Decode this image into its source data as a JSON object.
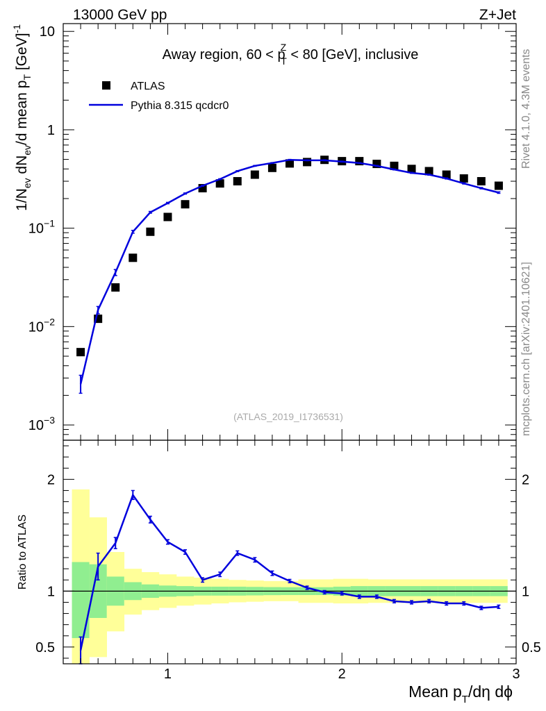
{
  "header": {
    "left": "13000 GeV pp",
    "right": "Z+Jet"
  },
  "side_labels": {
    "rivet": "Rivet 4.1.0,  4.3M events",
    "source": "mcplots.cern.ch [arXiv:2401.10621]"
  },
  "chart_data": [
    {
      "type": "scatter",
      "title_parts": {
        "prefix": "Away region, 60 < p",
        "sub": "T",
        "sup": "Z",
        "suffix": " < 80 [GeV], inclusive"
      },
      "ylabel_parts": [
        "1/N",
        "ev",
        " dN",
        "ev",
        "/d mean p",
        "T",
        " [GeV]",
        "-1"
      ],
      "xlabel_parts": [
        "Mean p",
        "T",
        "/dη dϕ"
      ],
      "yscale": "log",
      "ylim": [
        0.0007,
        12
      ],
      "xlim": [
        0.4,
        3.0
      ],
      "y_ticks": [
        {
          "value": 10,
          "mantissa": "10",
          "exp": ""
        },
        {
          "value": 1,
          "mantissa": "1",
          "exp": ""
        },
        {
          "value": 0.1,
          "mantissa": "10",
          "exp": "−1"
        },
        {
          "value": 0.01,
          "mantissa": "10",
          "exp": "−2"
        },
        {
          "value": 0.001,
          "mantissa": "10",
          "exp": "−3"
        }
      ],
      "watermark": "(ATLAS_2019_I1736531)",
      "legend": {
        "position": "top-left",
        "entries": [
          "ATLAS",
          "Pythia 8.315 qcdcr0"
        ]
      },
      "series": [
        {
          "name": "ATLAS",
          "style": "markers",
          "color": "#000000",
          "x": [
            0.5,
            0.6,
            0.7,
            0.8,
            0.9,
            1.0,
            1.1,
            1.2,
            1.3,
            1.4,
            1.5,
            1.6,
            1.7,
            1.8,
            1.9,
            2.0,
            2.1,
            2.2,
            2.3,
            2.4,
            2.5,
            2.6,
            2.7,
            2.8,
            2.9
          ],
          "values": [
            0.0055,
            0.012,
            0.025,
            0.05,
            0.092,
            0.13,
            0.175,
            0.255,
            0.285,
            0.3,
            0.35,
            0.41,
            0.455,
            0.47,
            0.495,
            0.48,
            0.48,
            0.45,
            0.43,
            0.4,
            0.38,
            0.35,
            0.32,
            0.3,
            0.27
          ]
        },
        {
          "name": "Pythia 8.315 qcdcr0",
          "style": "line",
          "color": "#0000dd",
          "x": [
            0.5,
            0.6,
            0.7,
            0.8,
            0.9,
            1.0,
            1.1,
            1.2,
            1.3,
            1.4,
            1.5,
            1.6,
            1.7,
            1.8,
            1.9,
            2.0,
            2.1,
            2.2,
            2.3,
            2.4,
            2.5,
            2.6,
            2.7,
            2.8,
            2.9
          ],
          "values": [
            0.0026,
            0.0148,
            0.0355,
            0.092,
            0.145,
            0.18,
            0.225,
            0.27,
            0.315,
            0.38,
            0.43,
            0.46,
            0.495,
            0.49,
            0.49,
            0.475,
            0.46,
            0.43,
            0.395,
            0.365,
            0.35,
            0.32,
            0.285,
            0.255,
            0.23
          ],
          "err_low": [
            0.0021,
            0.0135,
            0.033,
            0.089,
            0.142,
            0.177,
            0.222,
            0.267,
            0.312,
            0.376,
            0.426,
            0.456,
            0.49,
            0.485,
            0.485,
            0.47,
            0.456,
            0.426,
            0.391,
            0.361,
            0.346,
            0.316,
            0.281,
            0.251,
            0.226
          ],
          "err_high": [
            0.0032,
            0.016,
            0.038,
            0.095,
            0.148,
            0.183,
            0.228,
            0.273,
            0.318,
            0.384,
            0.434,
            0.464,
            0.5,
            0.495,
            0.495,
            0.48,
            0.464,
            0.434,
            0.399,
            0.369,
            0.354,
            0.324,
            0.289,
            0.259,
            0.234
          ]
        }
      ]
    },
    {
      "type": "line",
      "ylabel": "Ratio to ATLAS",
      "xlabel": "Mean pT/dη dϕ",
      "ylim": [
        0.35,
        2.35
      ],
      "xlim": [
        0.4,
        3.0
      ],
      "y_ticks": [
        0.5,
        1,
        2
      ],
      "y_tick_labels": [
        "0.5",
        "1",
        "2"
      ],
      "x_ticks": [
        1,
        2,
        3
      ],
      "x_tick_labels": [
        "1",
        "2",
        "3"
      ],
      "reference_line": 1,
      "bands": {
        "bin_edges": [
          0.45,
          0.55,
          0.65,
          0.75,
          0.85,
          0.95,
          1.05,
          1.15,
          1.25,
          1.35,
          1.45,
          1.55,
          1.65,
          1.75,
          1.85,
          1.95,
          2.05,
          2.15,
          2.25,
          2.35,
          2.45,
          2.55,
          2.65,
          2.75,
          2.85,
          2.95
        ],
        "green_color": "#90ee90",
        "yellow_color": "#ffff99",
        "green_low": [
          0.58,
          0.76,
          0.87,
          0.92,
          0.94,
          0.95,
          0.955,
          0.96,
          0.96,
          0.96,
          0.962,
          0.964,
          0.965,
          0.965,
          0.965,
          0.96,
          0.955,
          0.955,
          0.955,
          0.955,
          0.955,
          0.955,
          0.955,
          0.955,
          0.955
        ],
        "green_high": [
          1.26,
          1.24,
          1.13,
          1.08,
          1.06,
          1.05,
          1.045,
          1.04,
          1.04,
          1.04,
          1.038,
          1.036,
          1.035,
          1.035,
          1.035,
          1.04,
          1.045,
          1.045,
          1.045,
          1.045,
          1.045,
          1.045,
          1.045,
          1.045,
          1.045
        ],
        "yellow_low": [
          0.35,
          0.41,
          0.64,
          0.79,
          0.83,
          0.85,
          0.87,
          0.88,
          0.89,
          0.9,
          0.905,
          0.91,
          0.91,
          0.895,
          0.895,
          0.89,
          0.89,
          0.895,
          0.895,
          0.895,
          0.895,
          0.895,
          0.895,
          0.895,
          0.895
        ],
        "yellow_high": [
          1.91,
          1.66,
          1.35,
          1.2,
          1.17,
          1.15,
          1.13,
          1.12,
          1.11,
          1.1,
          1.095,
          1.09,
          1.09,
          1.105,
          1.105,
          1.11,
          1.11,
          1.105,
          1.105,
          1.105,
          1.105,
          1.105,
          1.105,
          1.105,
          1.105
        ]
      },
      "series": [
        {
          "name": "Pythia 8.315 qcdcr0 / ATLAS",
          "color": "#0000dd",
          "x": [
            0.5,
            0.6,
            0.7,
            0.8,
            0.9,
            1.0,
            1.1,
            1.2,
            1.3,
            1.4,
            1.5,
            1.6,
            1.7,
            1.8,
            1.9,
            2.0,
            2.1,
            2.2,
            2.3,
            2.4,
            2.5,
            2.6,
            2.7,
            2.8,
            2.9
          ],
          "values": [
            0.47,
            1.22,
            1.43,
            1.86,
            1.64,
            1.44,
            1.35,
            1.1,
            1.15,
            1.34,
            1.28,
            1.16,
            1.09,
            1.03,
            0.99,
            0.98,
            0.95,
            0.95,
            0.91,
            0.9,
            0.91,
            0.89,
            0.89,
            0.85,
            0.86
          ],
          "err_low": [
            0.35,
            1.1,
            1.38,
            1.82,
            1.61,
            1.42,
            1.33,
            1.08,
            1.13,
            1.32,
            1.26,
            1.14,
            1.075,
            1.015,
            0.975,
            0.965,
            0.935,
            0.935,
            0.895,
            0.885,
            0.895,
            0.875,
            0.875,
            0.835,
            0.845
          ],
          "err_high": [
            0.59,
            1.34,
            1.48,
            1.9,
            1.67,
            1.46,
            1.37,
            1.12,
            1.17,
            1.36,
            1.3,
            1.18,
            1.105,
            1.045,
            1.005,
            0.995,
            0.965,
            0.965,
            0.925,
            0.915,
            0.925,
            0.905,
            0.905,
            0.865,
            0.875
          ]
        }
      ]
    }
  ]
}
